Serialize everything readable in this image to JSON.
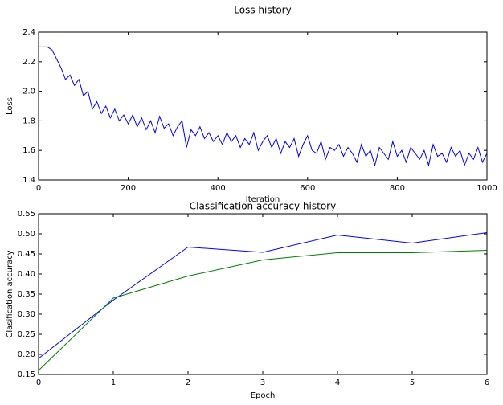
{
  "chart_data": [
    {
      "type": "line",
      "title": "Loss history",
      "xlabel": "Iteration",
      "ylabel": "Loss",
      "x": [
        0,
        10,
        20,
        30,
        40,
        50,
        60,
        70,
        80,
        90,
        100,
        110,
        120,
        130,
        140,
        150,
        160,
        170,
        180,
        190,
        200,
        210,
        220,
        230,
        240,
        250,
        260,
        270,
        280,
        290,
        300,
        310,
        320,
        330,
        340,
        350,
        360,
        370,
        380,
        390,
        400,
        410,
        420,
        430,
        440,
        450,
        460,
        470,
        480,
        490,
        500,
        510,
        520,
        530,
        540,
        550,
        560,
        570,
        580,
        590,
        600,
        610,
        620,
        630,
        640,
        650,
        660,
        670,
        680,
        690,
        700,
        710,
        720,
        730,
        740,
        750,
        760,
        770,
        780,
        790,
        800,
        810,
        820,
        830,
        840,
        850,
        860,
        870,
        880,
        890,
        900,
        910,
        920,
        930,
        940,
        950,
        960,
        970,
        980,
        990,
        1000
      ],
      "series": [
        {
          "color": "#0000ff",
          "values": [
            2.3,
            2.3,
            2.3,
            2.28,
            2.22,
            2.16,
            2.08,
            2.11,
            2.04,
            2.08,
            1.97,
            2.0,
            1.88,
            1.93,
            1.85,
            1.9,
            1.82,
            1.88,
            1.8,
            1.84,
            1.78,
            1.84,
            1.76,
            1.82,
            1.74,
            1.8,
            1.72,
            1.83,
            1.75,
            1.78,
            1.7,
            1.76,
            1.8,
            1.62,
            1.74,
            1.7,
            1.76,
            1.68,
            1.72,
            1.66,
            1.7,
            1.64,
            1.72,
            1.66,
            1.7,
            1.62,
            1.68,
            1.64,
            1.72,
            1.6,
            1.66,
            1.7,
            1.62,
            1.68,
            1.58,
            1.66,
            1.62,
            1.68,
            1.56,
            1.64,
            1.7,
            1.6,
            1.58,
            1.66,
            1.54,
            1.62,
            1.6,
            1.64,
            1.56,
            1.62,
            1.58,
            1.52,
            1.64,
            1.56,
            1.6,
            1.5,
            1.62,
            1.58,
            1.54,
            1.66,
            1.56,
            1.6,
            1.52,
            1.62,
            1.58,
            1.54,
            1.6,
            1.5,
            1.64,
            1.56,
            1.58,
            1.52,
            1.62,
            1.56,
            1.6,
            1.5,
            1.58,
            1.54,
            1.62,
            1.52,
            1.58
          ]
        }
      ],
      "xlim": [
        0,
        1000
      ],
      "xticks": [
        0,
        200,
        400,
        600,
        800,
        1000
      ],
      "ylim": [
        1.4,
        2.4
      ],
      "yticks": [
        1.4,
        1.6,
        1.8,
        {
          "value": 2,
          "label": "2.0"
        },
        2.2,
        2.4
      ]
    },
    {
      "type": "line",
      "title": "Classification accuracy history",
      "xlabel": "Epoch",
      "ylabel": "Clasification accuracy",
      "x": [
        0,
        1,
        2,
        3,
        4,
        5,
        6
      ],
      "series": [
        {
          "color": "#0000ff",
          "values": [
            0.19,
            0.335,
            0.467,
            0.454,
            0.497,
            0.477,
            0.503
          ]
        },
        {
          "color": "#008000",
          "values": [
            0.16,
            0.34,
            0.395,
            0.435,
            0.453,
            0.453,
            0.459
          ]
        }
      ],
      "xlim": [
        0,
        6
      ],
      "xticks": [
        0,
        1,
        2,
        3,
        4,
        5,
        6
      ],
      "ylim": [
        0.15,
        0.55
      ],
      "yticks": [
        0.15,
        {
          "value": 0.2,
          "label": "0.20"
        },
        0.25,
        {
          "value": 0.3,
          "label": "0.30"
        },
        0.35,
        {
          "value": 0.4,
          "label": "0.40"
        },
        0.45,
        {
          "value": 0.5,
          "label": "0.50"
        },
        0.55
      ]
    }
  ]
}
